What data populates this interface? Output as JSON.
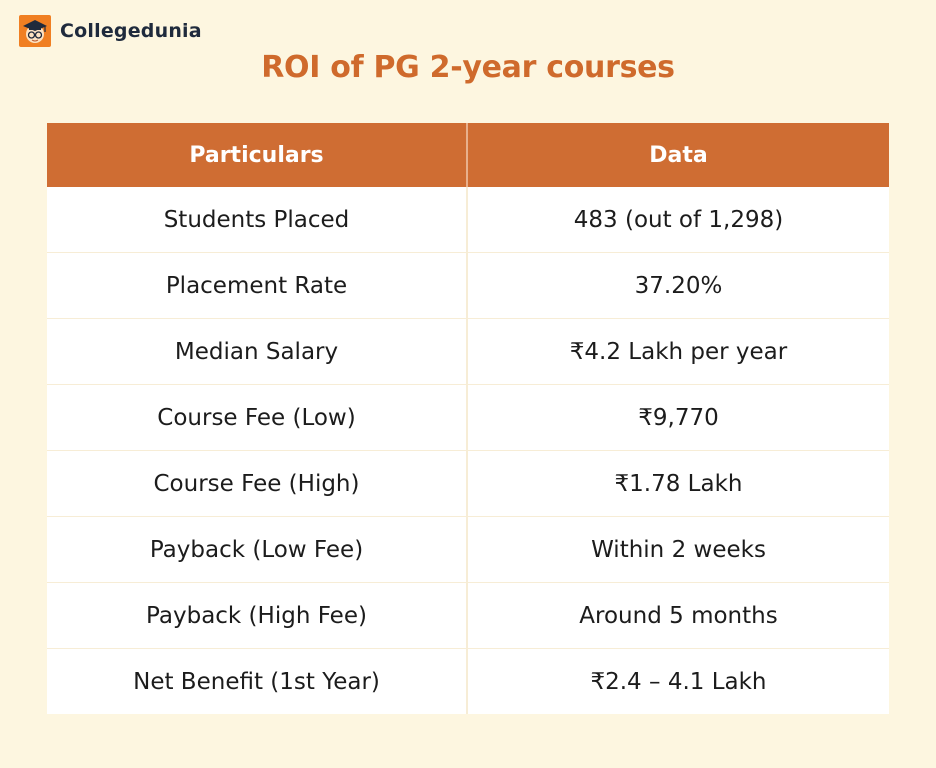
{
  "brand": {
    "name": "Collegedunia",
    "logo_icon": "graduate-face-icon",
    "logo_color": "#f07f22"
  },
  "title": "ROI of PG 2-year courses",
  "table": {
    "headers": [
      "Particulars",
      "Data"
    ],
    "rows": [
      {
        "label": "Students Placed",
        "value": "483 (out of 1,298)"
      },
      {
        "label": "Placement Rate",
        "value": "37.20%"
      },
      {
        "label": "Median Salary",
        "value": "₹4.2 Lakh per year"
      },
      {
        "label": "Course Fee (Low)",
        "value": "₹9,770"
      },
      {
        "label": "Course Fee (High)",
        "value": "₹1.78 Lakh"
      },
      {
        "label": "Payback (Low Fee)",
        "value": "Within 2 weeks"
      },
      {
        "label": "Payback (High Fee)",
        "value": "Around 5 months"
      },
      {
        "label": "Net Benefit (1st Year)",
        "value": "₹2.4 – 4.1 Lakh"
      }
    ]
  },
  "colors": {
    "background": "#fdf6e0",
    "header_fill": "#cf6d33",
    "title_color": "#cf6a2c",
    "brand_text": "#1f2a3c"
  }
}
